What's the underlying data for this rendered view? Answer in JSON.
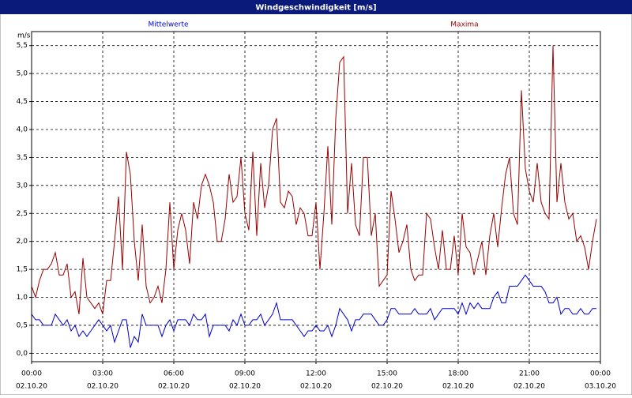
{
  "chart_data": {
    "type": "line",
    "title": "Windgeschwindigkeit [m/s]",
    "y_unit": "m/s",
    "grid": true,
    "xlim": [
      0,
      1440
    ],
    "ylim": [
      -0.15,
      5.75
    ],
    "yticks": [
      {
        "value": 0,
        "label": "0,0"
      },
      {
        "value": 0.5,
        "label": "0,5"
      },
      {
        "value": 1,
        "label": "1,0"
      },
      {
        "value": 1.5,
        "label": "1,5"
      },
      {
        "value": 2,
        "label": "2,0"
      },
      {
        "value": 2.5,
        "label": "2,5"
      },
      {
        "value": 3,
        "label": "3,0"
      },
      {
        "value": 3.5,
        "label": "3,5"
      },
      {
        "value": 4,
        "label": "4,0"
      },
      {
        "value": 4.5,
        "label": "4,5"
      },
      {
        "value": 5,
        "label": "5,0"
      },
      {
        "value": 5.5,
        "label": "5,5"
      }
    ],
    "xticks": [
      {
        "value": 0,
        "label": "00:00",
        "date": "02.10.20"
      },
      {
        "value": 180,
        "label": "03:00",
        "date": "02.10.20"
      },
      {
        "value": 360,
        "label": "06:00",
        "date": "02.10.20"
      },
      {
        "value": 540,
        "label": "09:00",
        "date": "02.10.20"
      },
      {
        "value": 720,
        "label": "12:00",
        "date": "02.10.20"
      },
      {
        "value": 900,
        "label": "15:00",
        "date": "02.10.20"
      },
      {
        "value": 1080,
        "label": "18:00",
        "date": "02.10.20"
      },
      {
        "value": 1260,
        "label": "21:00",
        "date": "02.10.20"
      },
      {
        "value": 1440,
        "label": "00:00",
        "date": "03.10.20"
      }
    ],
    "x": [
      0,
      10,
      20,
      30,
      40,
      50,
      60,
      70,
      80,
      90,
      100,
      110,
      120,
      130,
      140,
      150,
      160,
      170,
      180,
      190,
      200,
      210,
      220,
      230,
      240,
      250,
      260,
      270,
      280,
      290,
      300,
      310,
      320,
      330,
      340,
      350,
      360,
      370,
      380,
      390,
      400,
      410,
      420,
      430,
      440,
      450,
      460,
      470,
      480,
      490,
      500,
      510,
      520,
      530,
      540,
      550,
      560,
      570,
      580,
      590,
      600,
      610,
      620,
      630,
      640,
      650,
      660,
      670,
      680,
      690,
      700,
      710,
      720,
      730,
      740,
      750,
      760,
      770,
      780,
      790,
      800,
      810,
      820,
      830,
      840,
      850,
      860,
      870,
      880,
      890,
      900,
      910,
      920,
      930,
      940,
      950,
      960,
      970,
      980,
      990,
      1000,
      1010,
      1020,
      1030,
      1040,
      1050,
      1060,
      1070,
      1080,
      1090,
      1100,
      1110,
      1120,
      1130,
      1140,
      1150,
      1160,
      1170,
      1180,
      1190,
      1200,
      1210,
      1220,
      1230,
      1240,
      1250,
      1260,
      1270,
      1280,
      1290,
      1300,
      1310,
      1320,
      1330,
      1340,
      1350,
      1360,
      1370,
      1380,
      1390,
      1400,
      1410,
      1420,
      1430
    ],
    "series": [
      {
        "name": "Mittelwerte",
        "color": "#0000cc",
        "values": [
          0.7,
          0.6,
          0.6,
          0.5,
          0.5,
          0.5,
          0.7,
          0.6,
          0.5,
          0.6,
          0.4,
          0.5,
          0.3,
          0.4,
          0.3,
          0.4,
          0.5,
          0.6,
          0.5,
          0.4,
          0.5,
          0.2,
          0.4,
          0.6,
          0.6,
          0.1,
          0.3,
          0.2,
          0.7,
          0.5,
          0.5,
          0.5,
          0.5,
          0.3,
          0.5,
          0.6,
          0.4,
          0.6,
          0.6,
          0.6,
          0.5,
          0.7,
          0.6,
          0.6,
          0.7,
          0.3,
          0.5,
          0.5,
          0.5,
          0.5,
          0.4,
          0.6,
          0.5,
          0.7,
          0.5,
          0.5,
          0.6,
          0.6,
          0.7,
          0.5,
          0.6,
          0.7,
          0.9,
          0.6,
          0.6,
          0.6,
          0.6,
          0.5,
          0.4,
          0.3,
          0.4,
          0.4,
          0.5,
          0.4,
          0.4,
          0.5,
          0.3,
          0.5,
          0.8,
          0.7,
          0.6,
          0.4,
          0.6,
          0.6,
          0.7,
          0.7,
          0.7,
          0.6,
          0.5,
          0.5,
          0.6,
          0.8,
          0.8,
          0.7,
          0.7,
          0.7,
          0.7,
          0.8,
          0.7,
          0.7,
          0.7,
          0.8,
          0.6,
          0.7,
          0.8,
          0.8,
          0.8,
          0.8,
          0.7,
          0.9,
          0.7,
          0.9,
          0.8,
          0.9,
          0.8,
          0.8,
          0.8,
          1.0,
          1.1,
          0.9,
          0.9,
          1.2,
          1.2,
          1.2,
          1.3,
          1.4,
          1.3,
          1.2,
          1.2,
          1.2,
          1.1,
          0.9,
          0.9,
          1.0,
          0.7,
          0.8,
          0.8,
          0.7,
          0.7,
          0.8,
          0.7,
          0.7,
          0.8,
          0.8
        ]
      },
      {
        "name": "Maxima",
        "color": "#990000",
        "values": [
          1.2,
          1.0,
          1.3,
          1.5,
          1.5,
          1.6,
          1.8,
          1.4,
          1.4,
          1.6,
          1.0,
          1.1,
          0.7,
          1.7,
          1.0,
          0.9,
          0.8,
          0.9,
          0.7,
          1.3,
          1.3,
          2.0,
          2.8,
          1.5,
          3.6,
          3.2,
          2.0,
          1.3,
          2.3,
          1.2,
          0.9,
          1.0,
          1.2,
          0.9,
          1.5,
          2.7,
          1.5,
          2.2,
          2.5,
          2.2,
          1.6,
          2.7,
          2.4,
          3.0,
          3.2,
          3.0,
          2.7,
          2.0,
          2.0,
          2.4,
          3.2,
          2.7,
          2.8,
          3.5,
          2.5,
          2.2,
          3.6,
          2.1,
          3.4,
          2.6,
          3.0,
          4.0,
          4.2,
          2.7,
          2.6,
          2.9,
          2.8,
          2.3,
          2.6,
          2.5,
          2.1,
          2.1,
          2.7,
          1.5,
          2.5,
          3.7,
          2.3,
          4.2,
          5.2,
          5.3,
          2.5,
          3.4,
          2.3,
          2.1,
          3.5,
          3.5,
          2.1,
          2.5,
          1.2,
          1.3,
          1.4,
          2.9,
          2.4,
          1.8,
          2.0,
          2.3,
          1.5,
          1.3,
          1.4,
          1.4,
          2.5,
          2.4,
          1.9,
          1.5,
          2.2,
          1.5,
          1.5,
          2.1,
          1.4,
          2.5,
          1.9,
          1.8,
          1.4,
          1.7,
          2.0,
          1.4,
          2.1,
          2.5,
          1.9,
          2.6,
          3.2,
          3.5,
          2.5,
          2.3,
          4.7,
          3.3,
          2.9,
          2.7,
          3.4,
          2.7,
          2.5,
          2.4,
          5.5,
          2.7,
          3.4,
          2.7,
          2.4,
          2.5,
          2.0,
          2.1,
          1.9,
          1.5,
          2.0,
          2.4
        ]
      }
    ]
  }
}
